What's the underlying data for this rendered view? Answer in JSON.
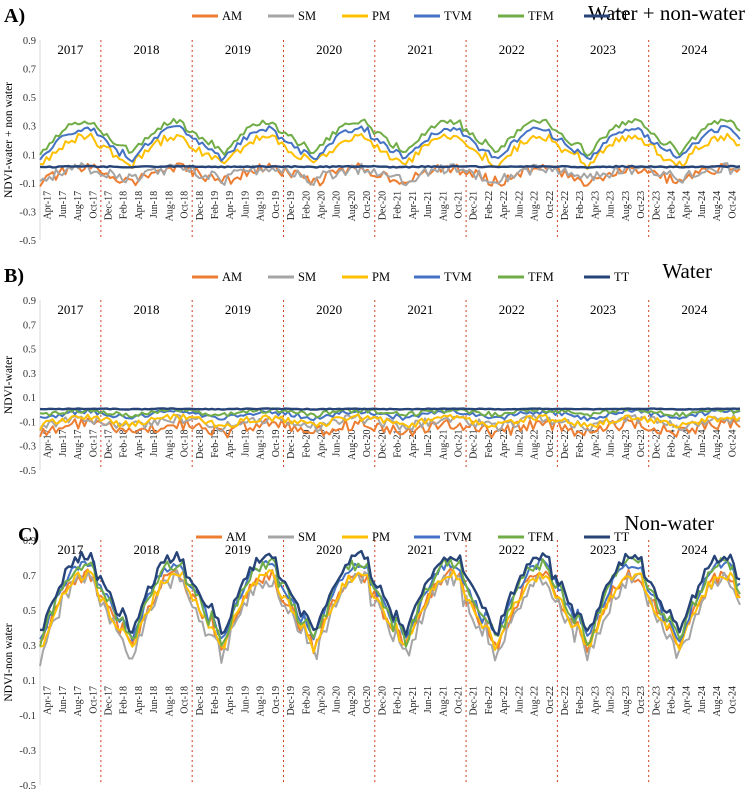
{
  "chart_data": [
    {
      "type": "line",
      "panel_label": "A)",
      "title": "Water + non-water",
      "ylabel": "NDVI-water + non water",
      "ylim": [
        -0.5,
        0.9
      ],
      "yticks": [
        -0.5,
        -0.3,
        -0.1,
        0.1,
        0.3,
        0.5,
        0.7,
        0.9
      ],
      "series": [
        {
          "name": "AM",
          "color": "#ED7D31",
          "base": -0.1,
          "amp": 0.1,
          "noise": 0.04
        },
        {
          "name": "SM",
          "color": "#A5A5A5",
          "base": -0.08,
          "amp": 0.08,
          "noise": 0.04
        },
        {
          "name": "PM",
          "color": "#FFC000",
          "base": 0.02,
          "amp": 0.2,
          "noise": 0.03
        },
        {
          "name": "TVM",
          "color": "#4472C4",
          "base": 0.06,
          "amp": 0.22,
          "noise": 0.02
        },
        {
          "name": "TFM",
          "color": "#70AD47",
          "base": 0.1,
          "amp": 0.23,
          "noise": 0.02
        },
        {
          "name": "TT",
          "color": "#264478",
          "base": 0.01,
          "amp": 0.005,
          "noise": 0.004
        }
      ]
    },
    {
      "type": "line",
      "panel_label": "B)",
      "title": "Water",
      "ylabel": "NDVI-water",
      "ylim": [
        -0.5,
        0.9
      ],
      "yticks": [
        -0.5,
        -0.3,
        -0.1,
        0.1,
        0.3,
        0.5,
        0.7,
        0.9
      ],
      "series": [
        {
          "name": "AM",
          "color": "#ED7D31",
          "base": -0.2,
          "amp": 0.08,
          "noise": 0.05
        },
        {
          "name": "SM",
          "color": "#A5A5A5",
          "base": -0.15,
          "amp": 0.07,
          "noise": 0.04
        },
        {
          "name": "PM",
          "color": "#FFC000",
          "base": -0.14,
          "amp": 0.07,
          "noise": 0.03
        },
        {
          "name": "TVM",
          "color": "#4472C4",
          "base": -0.08,
          "amp": 0.06,
          "noise": 0.02
        },
        {
          "name": "TFM",
          "color": "#70AD47",
          "base": -0.05,
          "amp": 0.04,
          "noise": 0.02
        },
        {
          "name": "TT",
          "color": "#264478",
          "base": 0.0,
          "amp": 0.004,
          "noise": 0.003
        }
      ]
    },
    {
      "type": "line",
      "panel_label": "C)",
      "title": "Non-water",
      "ylabel": "NDVI-non water",
      "ylim": [
        -0.5,
        0.9
      ],
      "yticks": [
        -0.5,
        -0.3,
        -0.1,
        0.1,
        0.3,
        0.5,
        0.7,
        0.9
      ],
      "series": [
        {
          "name": "AM",
          "color": "#ED7D31",
          "base": 0.28,
          "amp": 0.42,
          "noise": 0.04
        },
        {
          "name": "SM",
          "color": "#A5A5A5",
          "base": 0.22,
          "amp": 0.46,
          "noise": 0.05
        },
        {
          "name": "PM",
          "color": "#FFC000",
          "base": 0.27,
          "amp": 0.43,
          "noise": 0.03
        },
        {
          "name": "TVM",
          "color": "#4472C4",
          "base": 0.32,
          "amp": 0.45,
          "noise": 0.03
        },
        {
          "name": "TFM",
          "color": "#70AD47",
          "base": 0.31,
          "amp": 0.46,
          "noise": 0.04
        },
        {
          "name": "TT",
          "color": "#264478",
          "base": 0.36,
          "amp": 0.45,
          "noise": 0.03
        }
      ]
    }
  ],
  "years": [
    "2017",
    "2018",
    "2019",
    "2020",
    "2021",
    "2022",
    "2023",
    "2024"
  ],
  "x_labels": [
    "Apr-17",
    "Jun-17",
    "Aug-17",
    "Oct-17",
    "Dec-17",
    "Feb-18",
    "Apr-18",
    "Jun-18",
    "Aug-18",
    "Oct-18",
    "Dec-18",
    "Feb-19",
    "Apr-19",
    "Jun-19",
    "Aug-19",
    "Oct-19",
    "Dec-19",
    "Feb-20",
    "Apr-20",
    "Jun-20",
    "Aug-20",
    "Oct-20",
    "Dec-20",
    "Feb-21",
    "Apr-21",
    "Jun-21",
    "Aug-21",
    "Oct-21",
    "Dec-21",
    "Feb-22",
    "Apr-22",
    "Jun-22",
    "Aug-22",
    "Oct-22",
    "Dec-22",
    "Feb-23",
    "Apr-23",
    "Jun-23",
    "Aug-23",
    "Oct-23",
    "Dec-23",
    "Feb-24",
    "Apr-24",
    "Jun-24",
    "Aug-24",
    "Oct-24"
  ],
  "legend": [
    "AM",
    "SM",
    "PM",
    "TVM",
    "TFM",
    "TT"
  ]
}
